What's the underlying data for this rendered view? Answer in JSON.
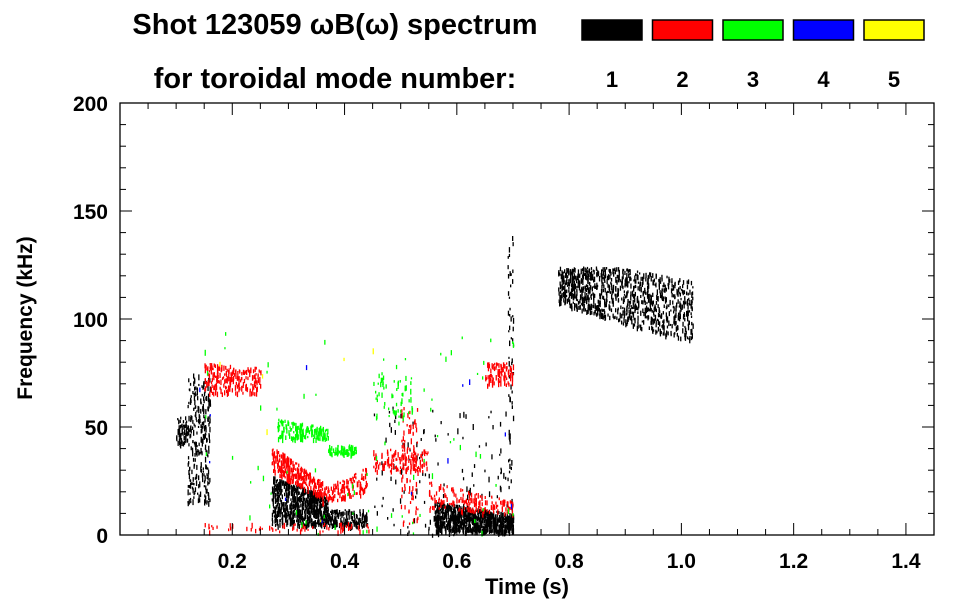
{
  "chart_data": {
    "type": "heatmap",
    "title": "Shot 123059 ωB(ω) spectrum",
    "subtitle": "for toroidal mode number:",
    "xlabel": "Time (s)",
    "ylabel": "Frequency (kHz)",
    "xlim": [
      0.0,
      1.45
    ],
    "ylim": [
      0,
      200
    ],
    "xticks": [
      "0.2",
      "0.4",
      "0.6",
      "0.8",
      "1.0",
      "1.2",
      "1.4"
    ],
    "xtick_values": [
      0.2,
      0.4,
      0.6,
      0.8,
      1.0,
      1.2,
      1.4
    ],
    "yticks": [
      "0",
      "50",
      "100",
      "150",
      "200"
    ],
    "ytick_values": [
      0,
      50,
      100,
      150,
      200
    ],
    "legend": [
      {
        "mode": "1",
        "color": "#000000"
      },
      {
        "mode": "2",
        "color": "#ff0000"
      },
      {
        "mode": "3",
        "color": "#00ff00"
      },
      {
        "mode": "4",
        "color": "#0000ff"
      },
      {
        "mode": "5",
        "color": "#ffff00"
      }
    ],
    "regions": [
      {
        "mode": 1,
        "t": [
          0.1,
          0.12
        ],
        "lo": [
          42,
          42
        ],
        "hi": [
          55,
          55
        ],
        "n": 60
      },
      {
        "mode": 1,
        "t": [
          0.12,
          0.16
        ],
        "lo": [
          15,
          15
        ],
        "hi": [
          75,
          75
        ],
        "n": 260
      },
      {
        "mode": 1,
        "t": [
          0.27,
          0.37
        ],
        "lo": [
          5,
          5
        ],
        "hi": [
          28,
          18
        ],
        "n": 700
      },
      {
        "mode": 1,
        "t": [
          0.37,
          0.44
        ],
        "lo": [
          4,
          4
        ],
        "hi": [
          12,
          12
        ],
        "n": 150
      },
      {
        "mode": 1,
        "t": [
          0.56,
          0.7
        ],
        "lo": [
          2,
          2
        ],
        "hi": [
          16,
          10
        ],
        "n": 800
      },
      {
        "mode": 1,
        "t": [
          0.45,
          0.7
        ],
        "lo": [
          0,
          0
        ],
        "hi": [
          60,
          60
        ],
        "n": 140
      },
      {
        "mode": 1,
        "t": [
          0.69,
          0.7
        ],
        "lo": [
          0,
          0
        ],
        "hi": [
          140,
          140
        ],
        "n": 60
      },
      {
        "mode": 1,
        "t": [
          0.78,
          0.9
        ],
        "lo": [
          108,
          98
        ],
        "hi": [
          125,
          124
        ],
        "n": 500
      },
      {
        "mode": 1,
        "t": [
          0.9,
          1.02
        ],
        "lo": [
          98,
          90
        ],
        "hi": [
          124,
          118
        ],
        "n": 450
      },
      {
        "mode": 2,
        "t": [
          0.15,
          0.25
        ],
        "lo": [
          66,
          66
        ],
        "hi": [
          80,
          78
        ],
        "n": 220
      },
      {
        "mode": 2,
        "t": [
          0.27,
          0.36
        ],
        "lo": [
          30,
          18
        ],
        "hi": [
          42,
          25
        ],
        "n": 260
      },
      {
        "mode": 2,
        "t": [
          0.36,
          0.44
        ],
        "lo": [
          15,
          20
        ],
        "hi": [
          22,
          32
        ],
        "n": 120
      },
      {
        "mode": 2,
        "t": [
          0.45,
          0.55
        ],
        "lo": [
          30,
          30
        ],
        "hi": [
          40,
          40
        ],
        "n": 120
      },
      {
        "mode": 2,
        "t": [
          0.5,
          0.53
        ],
        "lo": [
          5,
          5
        ],
        "hi": [
          60,
          60
        ],
        "n": 90
      },
      {
        "mode": 2,
        "t": [
          0.55,
          0.7
        ],
        "lo": [
          12,
          10
        ],
        "hi": [
          25,
          16
        ],
        "n": 160
      },
      {
        "mode": 2,
        "t": [
          0.65,
          0.7
        ],
        "lo": [
          70,
          70
        ],
        "hi": [
          80,
          80
        ],
        "n": 100
      },
      {
        "mode": 2,
        "t": [
          0.15,
          0.45
        ],
        "lo": [
          2,
          2
        ],
        "hi": [
          6,
          6
        ],
        "n": 60
      },
      {
        "mode": 3,
        "t": [
          0.28,
          0.37
        ],
        "lo": [
          45,
          45
        ],
        "hi": [
          54,
          50
        ],
        "n": 160
      },
      {
        "mode": 3,
        "t": [
          0.37,
          0.42
        ],
        "lo": [
          38,
          38
        ],
        "hi": [
          42,
          42
        ],
        "n": 80
      },
      {
        "mode": 3,
        "t": [
          0.45,
          0.52
        ],
        "lo": [
          55,
          55
        ],
        "hi": [
          75,
          75
        ],
        "n": 60
      },
      {
        "mode": 3,
        "t": [
          0.14,
          0.7
        ],
        "lo": [
          0,
          0
        ],
        "hi": [
          95,
          95
        ],
        "n": 80
      },
      {
        "mode": 4,
        "t": [
          0.14,
          0.7
        ],
        "lo": [
          5,
          5
        ],
        "hi": [
          90,
          90
        ],
        "n": 12
      },
      {
        "mode": 5,
        "t": [
          0.15,
          0.5
        ],
        "lo": [
          5,
          5
        ],
        "hi": [
          90,
          90
        ],
        "n": 6
      }
    ]
  }
}
